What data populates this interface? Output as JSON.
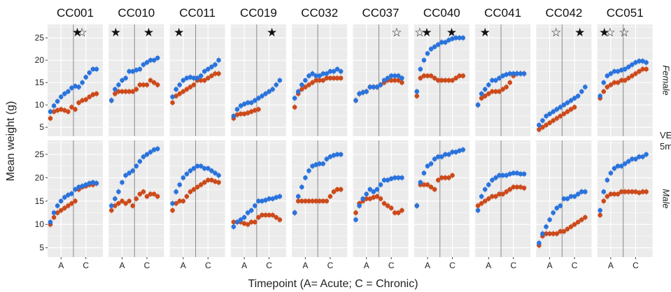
{
  "chart_data": {
    "type": "scatter",
    "title": "",
    "xlabel": "Timepoint (A= Acute; C = Chronic)",
    "ylabel": "Mean weight (g)",
    "ylim": [
      3,
      28
    ],
    "y_ticks": [
      5,
      10,
      15,
      20,
      25
    ],
    "x_tick_labels": [
      "A",
      "C"
    ],
    "x_range": [
      0,
      14
    ],
    "phase_divider_x": 6.5,
    "grid": true,
    "colors": {
      "blue": "#2a73dc",
      "red": "#cc4a1b",
      "panel_bg": "#ebebeb",
      "grid": "#ffffff",
      "divider": "#8a8a8a"
    },
    "rows": [
      {
        "label": "Female"
      },
      {
        "label": "Male"
      }
    ],
    "legend_fragments": [
      "VE",
      "5m"
    ],
    "panels": [
      {
        "strain": "CC001",
        "stars_female": [
          {
            "x": 7.6,
            "filled": true
          },
          {
            "x": 8.9,
            "filled": false
          }
        ],
        "female": {
          "blue": [
            8.5,
            9.8,
            10.8,
            11.8,
            12.5,
            13.0,
            13.8,
            14.2,
            14.0,
            15.0,
            16.2,
            17.2,
            18.0,
            18.0
          ],
          "red": [
            7.0,
            8.5,
            8.8,
            9.0,
            8.8,
            8.5,
            9.5,
            9.0,
            10.5,
            11.0,
            11.2,
            11.8,
            12.3,
            12.5
          ]
        },
        "male": {
          "blue": [
            10.5,
            12.5,
            14.0,
            15.0,
            15.8,
            16.3,
            16.6,
            17.5,
            18.0,
            18.2,
            18.5,
            18.8,
            19.0,
            18.8
          ],
          "red": [
            10.0,
            11.5,
            12.5,
            13.0,
            13.5,
            14.0,
            14.5,
            15.0,
            17.5,
            18.0,
            18.2,
            18.5,
            18.5,
            18.8
          ]
        }
      },
      {
        "strain": "CC010",
        "stars_female": [
          {
            "x": 1.2,
            "filled": true
          },
          {
            "x": 10.5,
            "filled": true
          }
        ],
        "female": {
          "blue": [
            11.0,
            13.5,
            14.5,
            15.5,
            16.0,
            17.5,
            17.5,
            17.8,
            18.0,
            19.0,
            19.5,
            20.0,
            20.0,
            20.5
          ],
          "red": [
            11.0,
            12.5,
            13.0,
            13.0,
            13.0,
            13.0,
            13.0,
            13.5,
            14.5,
            14.5,
            14.5,
            15.5,
            15.0,
            14.5
          ]
        },
        "male": {
          "blue": [
            14.0,
            15.5,
            17.0,
            19.0,
            20.5,
            21.0,
            21.5,
            22.5,
            23.5,
            24.5,
            25.0,
            25.5,
            26.0,
            26.2
          ],
          "red": [
            13.0,
            14.0,
            14.5,
            15.0,
            14.5,
            15.0,
            14.0,
            15.5,
            16.5,
            17.0,
            16.0,
            16.5,
            16.5,
            16.0
          ]
        }
      },
      {
        "strain": "CC011",
        "stars_female": [
          {
            "x": 1.8,
            "filled": true
          }
        ],
        "female": {
          "blue": [
            11.8,
            13.5,
            14.5,
            15.5,
            16.0,
            16.2,
            16.0,
            16.0,
            16.5,
            17.5,
            18.0,
            18.5,
            19.0,
            20.0
          ],
          "red": [
            10.5,
            12.0,
            12.5,
            13.0,
            13.5,
            14.0,
            14.5,
            15.5,
            15.5,
            15.5,
            16.0,
            16.5,
            17.0,
            17.0
          ]
        },
        "male": {
          "blue": [
            14.5,
            17.0,
            18.5,
            20.0,
            20.8,
            21.5,
            22.0,
            22.5,
            22.5,
            22.0,
            22.0,
            21.5,
            21.0,
            20.5
          ],
          "red": [
            13.0,
            14.5,
            15.0,
            15.0,
            16.0,
            17.0,
            17.5,
            18.0,
            18.5,
            19.0,
            19.5,
            19.5,
            19.2,
            19.0
          ]
        }
      },
      {
        "strain": "CC019",
        "stars_female": [
          {
            "x": 10.8,
            "filled": true
          }
        ],
        "female": {
          "blue": [
            7.5,
            9.0,
            9.8,
            10.2,
            10.5,
            10.5,
            11.0,
            11.5,
            12.0,
            12.5,
            13.0,
            13.5,
            14.5,
            15.5
          ],
          "red": [
            7.0,
            7.8,
            8.0,
            8.0,
            8.2,
            8.5,
            8.8,
            9.0,
            null,
            null,
            null,
            null,
            null,
            null
          ]
        },
        "male": {
          "blue": [
            9.5,
            10.5,
            11.0,
            11.5,
            12.5,
            13.0,
            14.0,
            15.0,
            15.0,
            15.2,
            15.5,
            15.5,
            15.8,
            16.0
          ],
          "red": [
            10.5,
            10.5,
            10.5,
            10.2,
            10.0,
            10.5,
            10.5,
            11.5,
            12.0,
            12.0,
            12.0,
            12.0,
            11.5,
            11.0
          ]
        }
      },
      {
        "strain": "CC032",
        "female": {
          "blue": [
            11.5,
            13.0,
            14.5,
            15.5,
            16.5,
            17.0,
            16.5,
            16.5,
            17.0,
            17.0,
            17.5,
            17.5,
            18.0,
            17.5
          ],
          "red": [
            9.5,
            12.5,
            13.5,
            14.0,
            14.5,
            15.0,
            15.5,
            15.5,
            15.5,
            16.0,
            16.0,
            16.0,
            16.0,
            16.0
          ]
        },
        "male": {
          "blue": [
            12.5,
            16.0,
            18.0,
            20.0,
            21.5,
            22.5,
            22.8,
            23.0,
            23.0,
            24.0,
            24.5,
            24.8,
            25.0,
            25.0
          ],
          "red": [
            12.5,
            15.0,
            15.0,
            15.0,
            15.0,
            15.0,
            15.0,
            15.0,
            15.0,
            15.0,
            16.0,
            17.0,
            17.5,
            17.5
          ]
        }
      },
      {
        "strain": "CC037",
        "stars_female": [
          {
            "x": 11.5,
            "filled": false
          }
        ],
        "female": {
          "blue": [
            11.0,
            12.5,
            12.8,
            13.0,
            14.0,
            14.0,
            14.0,
            14.5,
            15.5,
            16.0,
            16.5,
            16.5,
            16.5,
            16.0
          ],
          "red": [
            11.0,
            12.5,
            12.8,
            13.0,
            14.0,
            14.0,
            14.0,
            14.5,
            15.0,
            15.5,
            15.5,
            15.5,
            15.5,
            15.0
          ]
        },
        "male": {
          "blue": [
            11.0,
            14.0,
            15.5,
            16.5,
            17.5,
            17.0,
            17.5,
            18.5,
            19.5,
            19.5,
            19.8,
            20.0,
            20.0,
            20.0
          ],
          "red": [
            12.5,
            14.5,
            15.0,
            15.5,
            15.5,
            15.8,
            16.0,
            15.5,
            14.5,
            14.0,
            13.5,
            12.5,
            12.5,
            13.0
          ]
        }
      },
      {
        "strain": "CC040",
        "stars_female": [
          {
            "x": 0.8,
            "filled": false
          },
          {
            "x": 2.8,
            "filled": true
          },
          {
            "x": 9.8,
            "filled": true
          }
        ],
        "female": {
          "blue": [
            13.0,
            18.0,
            20.0,
            21.5,
            22.5,
            23.0,
            23.5,
            24.0,
            24.0,
            24.5,
            24.8,
            25.0,
            25.0,
            25.0
          ],
          "red": [
            12.0,
            16.0,
            16.5,
            16.5,
            16.5,
            16.0,
            15.5,
            15.5,
            15.5,
            15.5,
            15.5,
            16.0,
            16.5,
            16.5
          ]
        },
        "male": {
          "blue": [
            14.0,
            19.0,
            21.0,
            22.5,
            23.0,
            24.0,
            24.5,
            24.5,
            25.0,
            25.0,
            25.5,
            25.5,
            25.8,
            26.0
          ],
          "red": [
            14.0,
            18.5,
            18.5,
            18.5,
            18.0,
            17.5,
            19.5,
            20.0,
            20.0,
            20.0,
            20.5,
            null,
            null,
            null
          ]
        }
      },
      {
        "strain": "CC041",
        "stars_female": [
          {
            "x": 2.0,
            "filled": true
          }
        ],
        "female": {
          "blue": [
            10.0,
            12.5,
            13.5,
            14.5,
            15.5,
            15.5,
            16.0,
            16.5,
            16.8,
            17.0,
            17.0,
            17.0,
            17.0,
            17.0
          ],
          "red": [
            10.0,
            11.5,
            12.0,
            12.5,
            13.0,
            13.0,
            13.0,
            13.5,
            14.0,
            15.0,
            16.5,
            17.0,
            17.0,
            17.0
          ]
        },
        "male": {
          "blue": [
            13.0,
            16.0,
            17.5,
            18.5,
            19.5,
            20.0,
            20.5,
            20.5,
            20.5,
            20.8,
            21.0,
            21.0,
            20.8,
            20.8
          ],
          "red": [
            14.0,
            14.5,
            15.0,
            15.5,
            16.0,
            16.0,
            16.5,
            16.5,
            17.0,
            17.5,
            18.0,
            18.0,
            18.0,
            17.8
          ]
        }
      },
      {
        "strain": "CC042",
        "stars_female": [
          {
            "x": 4.8,
            "filled": false
          },
          {
            "x": 11.5,
            "filled": true
          }
        ],
        "female": {
          "blue": [
            5.5,
            6.5,
            7.5,
            8.0,
            8.5,
            9.0,
            9.5,
            10.0,
            10.5,
            11.0,
            11.5,
            12.0,
            13.0,
            14.0
          ],
          "red": [
            4.5,
            5.0,
            5.5,
            6.0,
            6.5,
            7.0,
            7.5,
            8.0,
            8.5,
            9.0,
            9.5,
            null,
            null,
            null
          ]
        },
        "male": {
          "blue": [
            6.0,
            8.0,
            9.5,
            11.0,
            12.5,
            13.5,
            14.0,
            15.5,
            15.5,
            16.0,
            16.0,
            16.5,
            17.0,
            17.0
          ],
          "red": [
            5.5,
            7.5,
            8.0,
            8.0,
            8.0,
            8.0,
            8.5,
            8.5,
            9.0,
            9.5,
            10.0,
            10.5,
            11.0,
            11.5
          ]
        }
      },
      {
        "strain": "CC051",
        "stars_female": [
          {
            "x": 1.2,
            "filled": true
          },
          {
            "x": 2.8,
            "filled": false
          },
          {
            "x": 6.8,
            "filled": false
          }
        ],
        "female": {
          "blue": [
            12.0,
            15.0,
            16.5,
            17.0,
            17.5,
            17.5,
            17.8,
            18.0,
            18.5,
            19.0,
            19.5,
            19.8,
            19.8,
            19.5
          ],
          "red": [
            11.5,
            13.0,
            14.0,
            14.5,
            15.0,
            15.0,
            15.5,
            15.5,
            16.0,
            16.5,
            17.0,
            17.5,
            18.0,
            18.0
          ]
        },
        "male": {
          "blue": [
            13.0,
            17.0,
            19.5,
            21.0,
            22.0,
            22.5,
            22.5,
            23.0,
            23.5,
            24.0,
            24.0,
            24.5,
            24.5,
            25.0
          ],
          "red": [
            12.0,
            15.0,
            16.0,
            16.5,
            16.5,
            16.5,
            17.0,
            17.0,
            17.0,
            17.0,
            17.0,
            16.8,
            17.0,
            17.0
          ]
        }
      }
    ]
  }
}
